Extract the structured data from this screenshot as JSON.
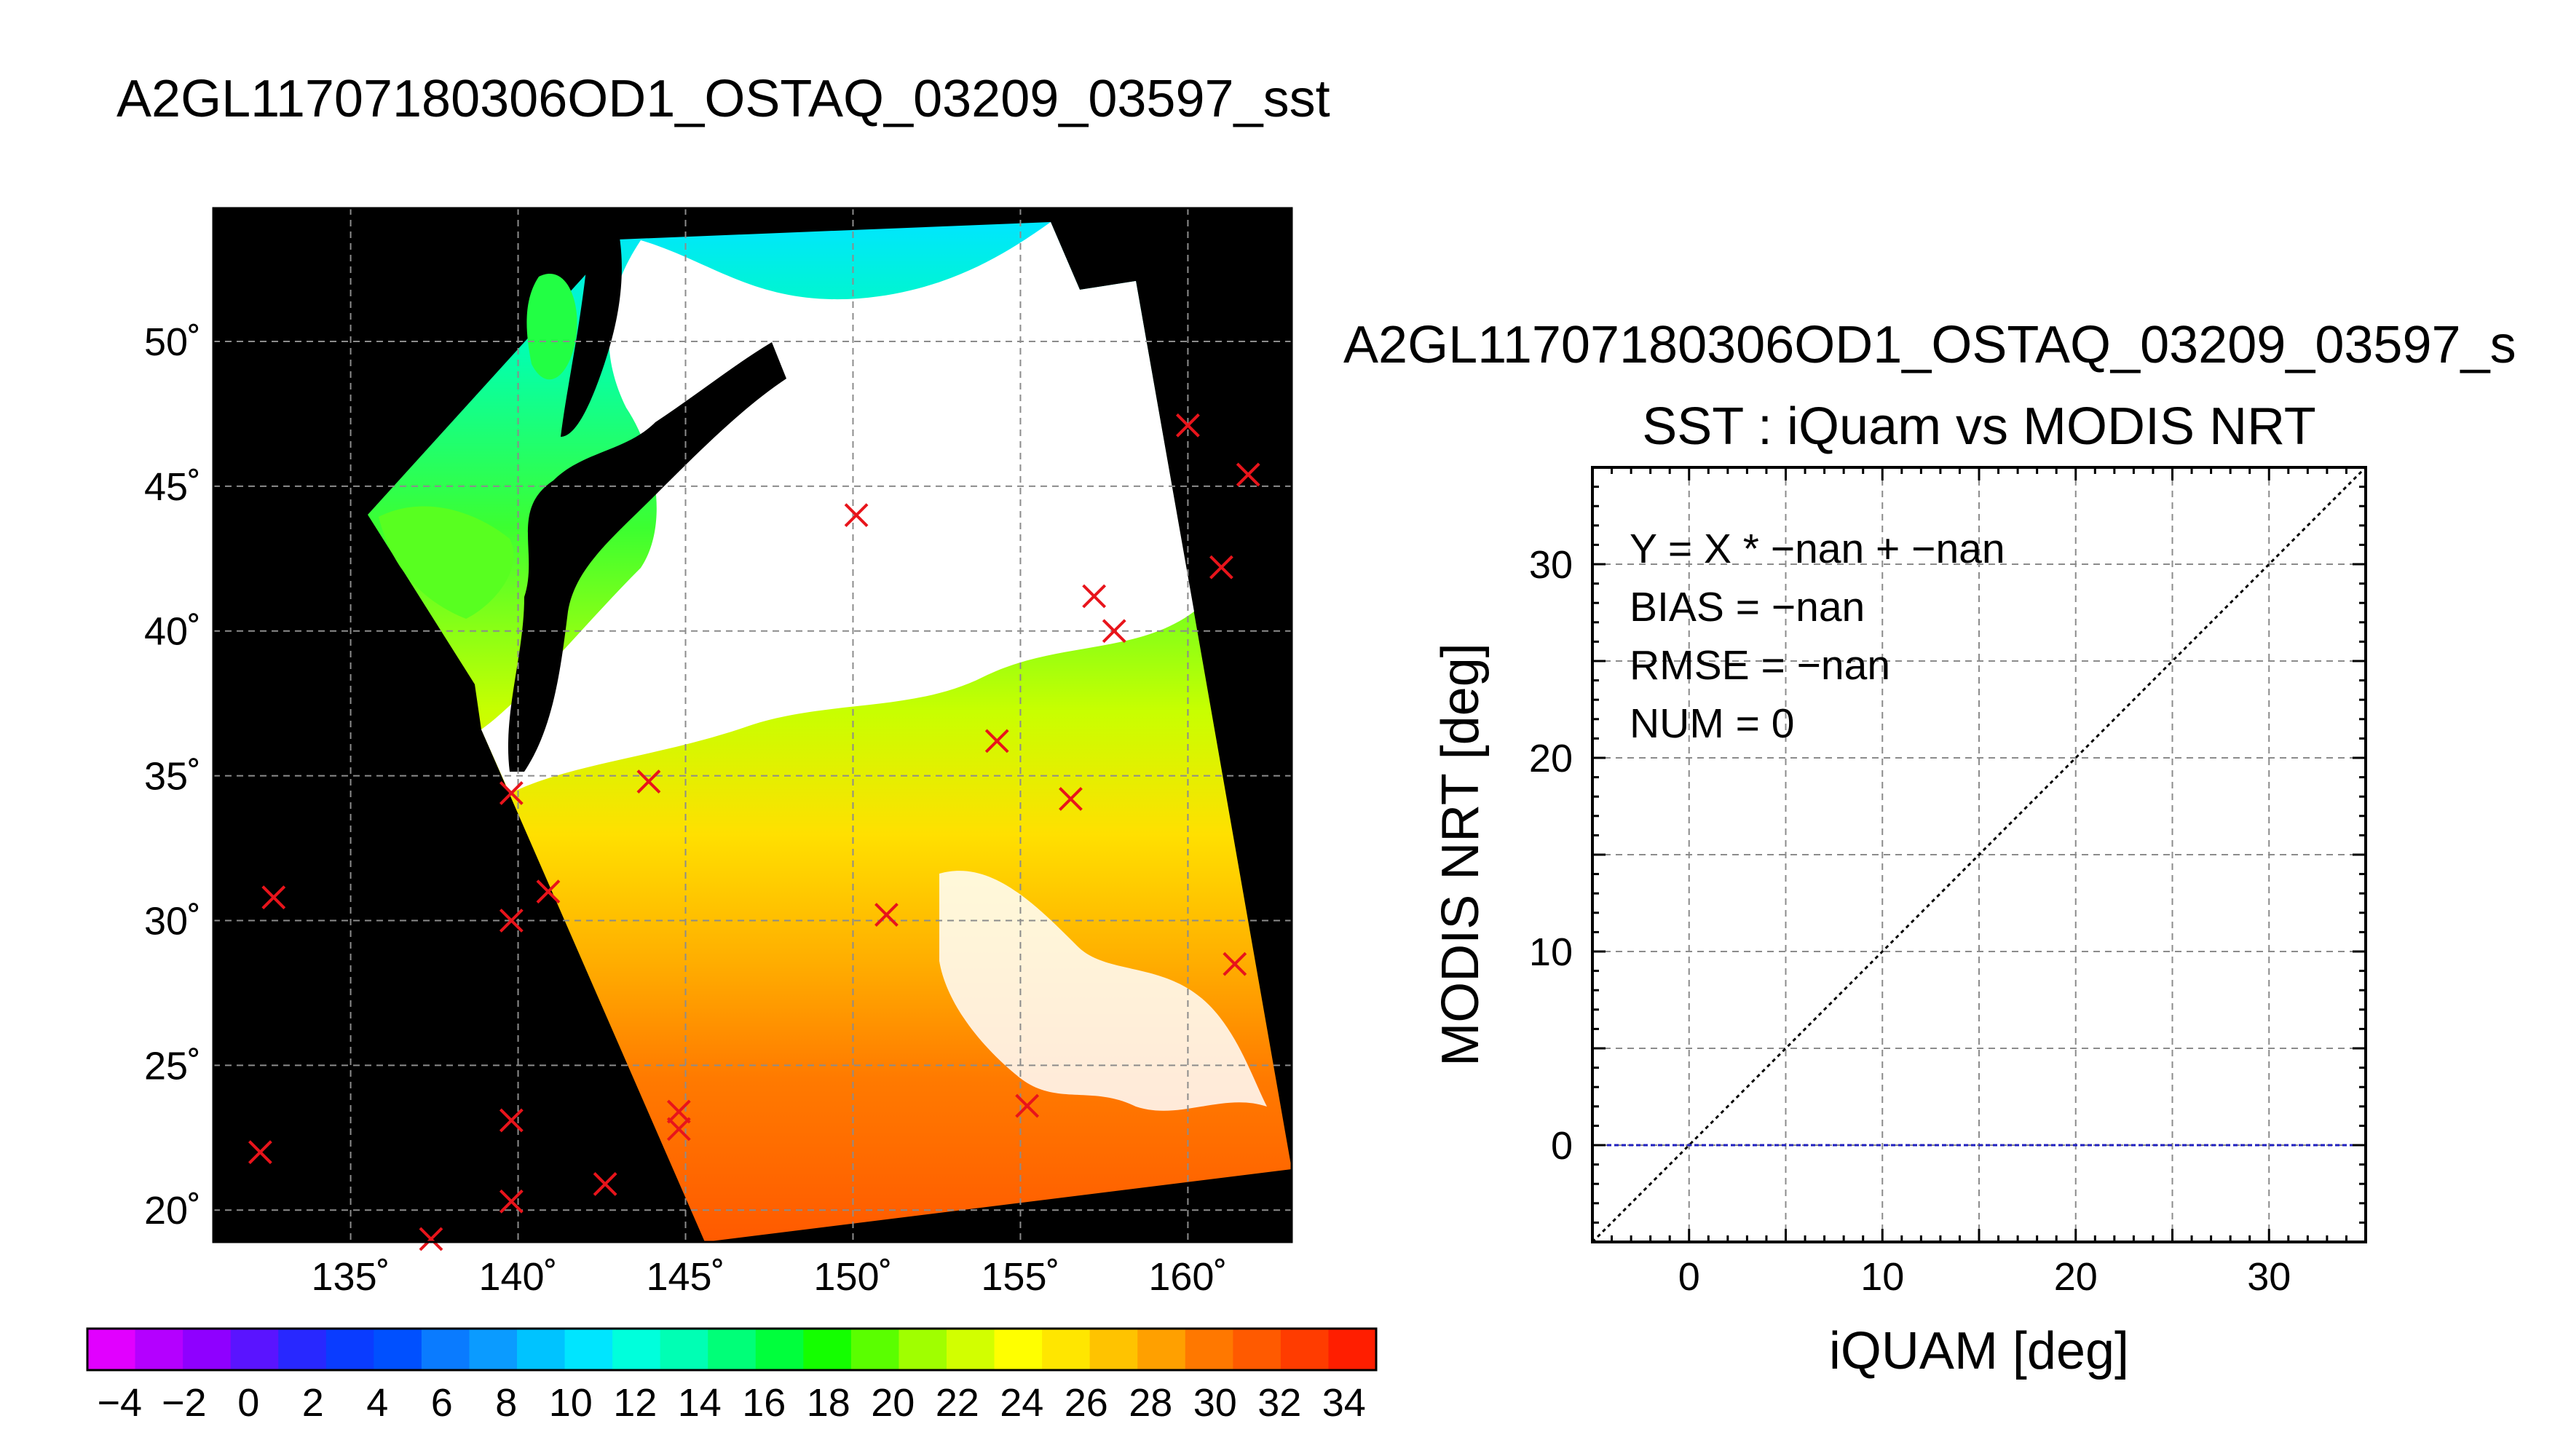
{
  "figure_title": "A2GL11707180306OD1_OSTAQ_03209_03597_sst",
  "chart_data": [
    {
      "type": "heatmap",
      "description_kind": "map",
      "x_ticks": [
        "135˚",
        "140˚",
        "145˚",
        "150˚",
        "155˚",
        "160˚"
      ],
      "x_tick_values": [
        135,
        140,
        145,
        150,
        155,
        160
      ],
      "y_ticks": [
        "20˚",
        "25˚",
        "30˚",
        "35˚",
        "40˚",
        "45˚",
        "50˚"
      ],
      "y_tick_values": [
        20,
        25,
        30,
        35,
        40,
        45,
        50
      ],
      "xlim": [
        130.9,
        163.1
      ],
      "ylim": [
        18.9,
        54.6
      ],
      "grid": true,
      "background_color": "#000000",
      "no_data_color": "#ffffff",
      "marker_color": "#e8141b",
      "markers": [
        {
          "lon": 132.3,
          "lat": 22.0
        },
        {
          "lon": 132.7,
          "lat": 30.8
        },
        {
          "lon": 137.4,
          "lat": 19.0
        },
        {
          "lon": 139.8,
          "lat": 20.3
        },
        {
          "lon": 139.8,
          "lat": 23.1
        },
        {
          "lon": 139.8,
          "lat": 30.0
        },
        {
          "lon": 139.8,
          "lat": 34.4
        },
        {
          "lon": 140.9,
          "lat": 31.0
        },
        {
          "lon": 142.6,
          "lat": 20.9
        },
        {
          "lon": 143.9,
          "lat": 34.8
        },
        {
          "lon": 144.8,
          "lat": 22.8
        },
        {
          "lon": 144.8,
          "lat": 23.4
        },
        {
          "lon": 150.1,
          "lat": 44.0
        },
        {
          "lon": 151.0,
          "lat": 30.2
        },
        {
          "lon": 154.3,
          "lat": 36.2
        },
        {
          "lon": 155.2,
          "lat": 23.6
        },
        {
          "lon": 156.5,
          "lat": 34.2
        },
        {
          "lon": 157.2,
          "lat": 41.2
        },
        {
          "lon": 157.8,
          "lat": 40.0
        },
        {
          "lon": 160.0,
          "lat": 47.1
        },
        {
          "lon": 161.0,
          "lat": 42.2
        },
        {
          "lon": 161.4,
          "lat": 28.5
        },
        {
          "lon": 161.8,
          "lat": 45.4
        }
      ]
    },
    {
      "type": "scatter",
      "title": "A2GL11707180306OD1_OSTAQ_03209_03597_s",
      "subtitle": "SST : iQuam vs MODIS NRT",
      "xlabel": "iQUAM [deg]",
      "ylabel": "MODIS NRT [deg]",
      "xlim": [
        -5,
        35
      ],
      "ylim": [
        -5,
        35
      ],
      "x_ticks": [
        0,
        10,
        20,
        30
      ],
      "y_ticks": [
        0,
        10,
        20,
        30
      ],
      "grid": true,
      "series": [],
      "reference_lines": [
        {
          "kind": "identity",
          "style": "dotted",
          "color": "#000000"
        },
        {
          "kind": "horizontal",
          "y": 0,
          "style": "dashed",
          "color": "#1f1fbf"
        }
      ],
      "annotations": [
        "Y = X * −nan + −nan",
        "BIAS = −nan",
        "RMSE = −nan",
        "NUM = 0"
      ]
    }
  ],
  "colorbar": {
    "tick_labels": [
      "−4",
      "−2",
      "0",
      "2",
      "4",
      "6",
      "8",
      "10",
      "12",
      "14",
      "16",
      "18",
      "20",
      "22",
      "24",
      "26",
      "28",
      "30",
      "32",
      "34"
    ],
    "tick_values": [
      -4,
      -2,
      0,
      2,
      4,
      6,
      8,
      10,
      12,
      14,
      16,
      18,
      20,
      22,
      24,
      26,
      28,
      30,
      32,
      34
    ],
    "range": [
      -5,
      35
    ],
    "colors": [
      "#e100ff",
      "#b400ff",
      "#8f00ff",
      "#5a14ff",
      "#2828ff",
      "#0a3cff",
      "#0050ff",
      "#0a7bff",
      "#0b9bff",
      "#00c3ff",
      "#00e5ff",
      "#00ffdc",
      "#00ffb4",
      "#00ff78",
      "#00ff3c",
      "#14ff00",
      "#5aff00",
      "#a0ff00",
      "#d2ff00",
      "#ffff00",
      "#ffe600",
      "#ffc300",
      "#ffa000",
      "#ff7800",
      "#ff5a00",
      "#ff3c00",
      "#ff1e00"
    ]
  }
}
